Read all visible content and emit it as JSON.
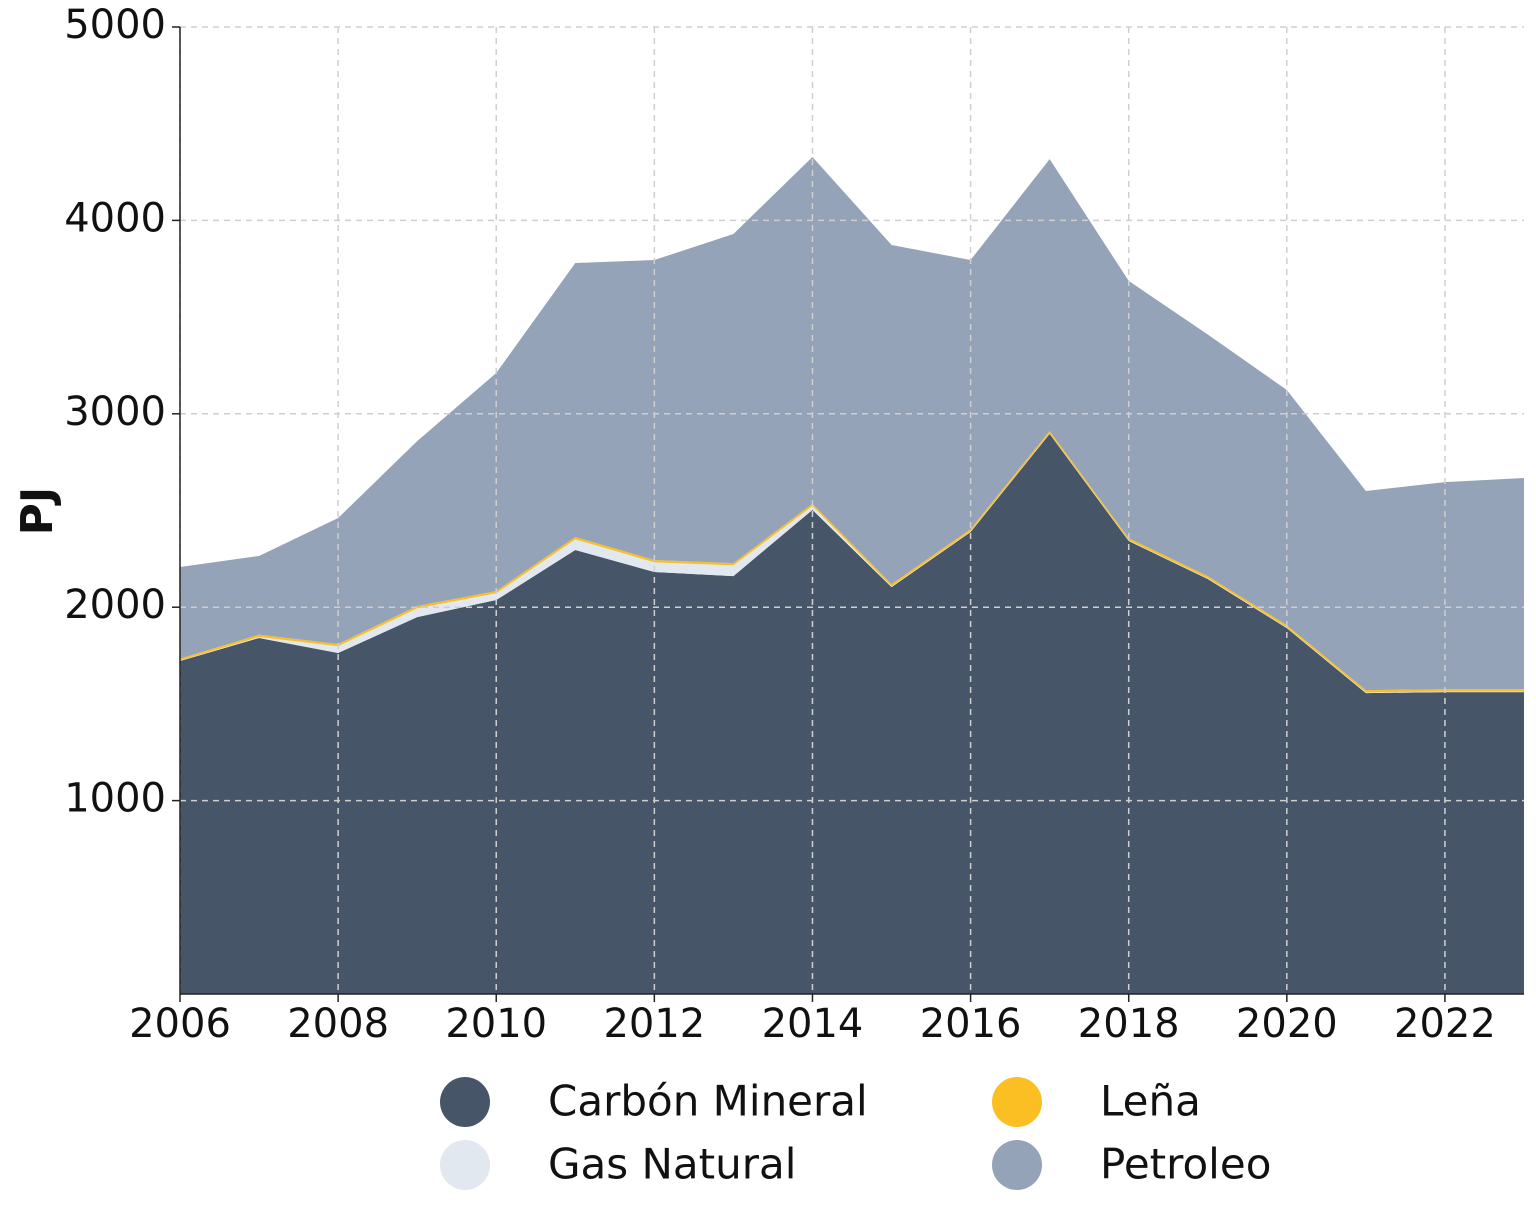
{
  "chart_data": {
    "type": "stacked-area",
    "y_label": "PJ",
    "x": [
      2006,
      2007,
      2008,
      2009,
      2010,
      2011,
      2012,
      2013,
      2014,
      2015,
      2016,
      2017,
      2018,
      2019,
      2020,
      2021,
      2022,
      2023
    ],
    "xlim": [
      2006,
      2023
    ],
    "xticks": [
      2006,
      2008,
      2010,
      2012,
      2014,
      2016,
      2018,
      2020,
      2022
    ],
    "ylim": [
      0,
      5000
    ],
    "yticks": [
      1000,
      2000,
      3000,
      4000,
      5000
    ],
    "grid": true,
    "legend": "bottom",
    "series": [
      {
        "name": "Carbón Mineral",
        "color": "#475569",
        "values": [
          1722,
          1841,
          1763,
          1949,
          2037,
          2296,
          2182,
          2161,
          2503,
          2104,
          2389,
          2896,
          2342,
          2146,
          1892,
          1556,
          1561,
          1561
        ]
      },
      {
        "name": "Gas Natural",
        "color": "#e2e8f0",
        "values": [
          2,
          5,
          35,
          45,
          35,
          55,
          50,
          55,
          20,
          3,
          3,
          3,
          3,
          3,
          3,
          3,
          3,
          3
        ]
      },
      {
        "name": "Leña",
        "color": "#fbbf24",
        "values": [
          10,
          12,
          12,
          12,
          12,
          12,
          12,
          12,
          12,
          12,
          12,
          12,
          12,
          12,
          12,
          12,
          12,
          12
        ]
      },
      {
        "name": "Petroleo",
        "color": "#94a3b8",
        "values": [
          474,
          407,
          651,
          853,
          1127,
          1417,
          1551,
          1702,
          1793,
          1754,
          1391,
          1406,
          1330,
          1249,
          1216,
          1030,
          1071,
          1092
        ]
      }
    ]
  }
}
